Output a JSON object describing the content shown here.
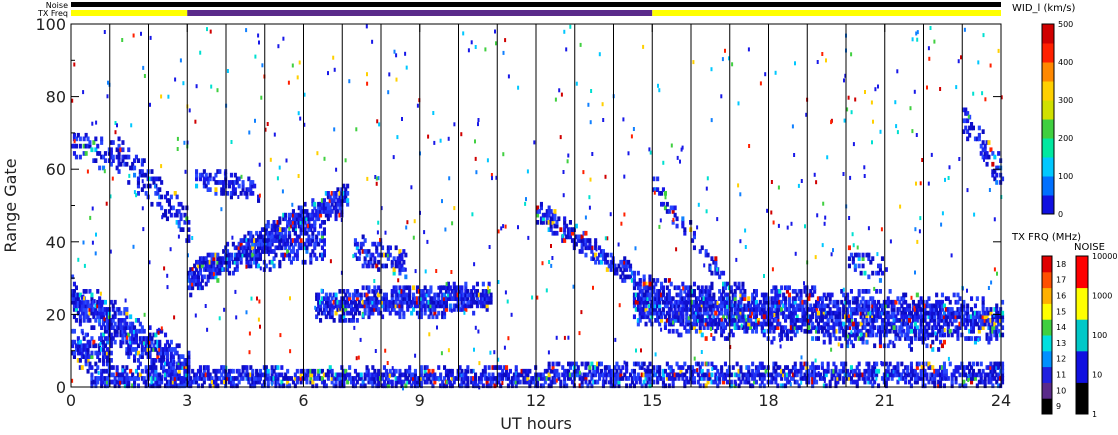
{
  "chart_data": {
    "type": "heatmap",
    "xlabel": "UT hours",
    "ylabel": "Range Gate",
    "xlim": [
      0,
      24
    ],
    "ylim": [
      0,
      100
    ],
    "x_ticks": [
      0,
      3,
      6,
      9,
      12,
      15,
      18,
      21,
      24
    ],
    "y_ticks": [
      0,
      20,
      40,
      60,
      80,
      100
    ],
    "scan_boundaries_hours": [
      1,
      2,
      3,
      4,
      5,
      6,
      7,
      8,
      9,
      10,
      11,
      12,
      13,
      14,
      15,
      16,
      17,
      18,
      19,
      20,
      21,
      22,
      23
    ],
    "top_bars": {
      "noise_label": "Noise",
      "txfreq_label": "TX Freq",
      "segments": [
        {
          "from": 0,
          "to": 3,
          "color": "#ffff00"
        },
        {
          "from": 3,
          "to": 15,
          "color": "#5a2a8a"
        },
        {
          "from": 15,
          "to": 24,
          "color": "#ffff00"
        }
      ]
    },
    "echo_bands": [
      {
        "t0": 0.0,
        "g0": 24,
        "t1": 3.0,
        "g1": 4,
        "halfwidth": 6,
        "density": 0.8
      },
      {
        "t0": 0.0,
        "g0": 10,
        "t1": 1.0,
        "g1": 8,
        "halfwidth": 5,
        "density": 0.7
      },
      {
        "t0": 0.0,
        "g0": 68,
        "t1": 1.0,
        "g1": 62,
        "halfwidth": 4,
        "density": 0.35
      },
      {
        "t0": 1.0,
        "g0": 66,
        "t1": 3.0,
        "g1": 44,
        "halfwidth": 5,
        "density": 0.45
      },
      {
        "t0": 3.0,
        "g0": 29,
        "t1": 7.1,
        "g1": 52,
        "halfwidth": 4,
        "density": 0.9
      },
      {
        "t0": 4.5,
        "g0": 36,
        "t1": 6.5,
        "g1": 40,
        "halfwidth": 5,
        "density": 0.6
      },
      {
        "t0": 3.2,
        "g0": 57,
        "t1": 4.8,
        "g1": 54,
        "halfwidth": 3,
        "density": 0.45
      },
      {
        "t0": 6.3,
        "g0": 22,
        "t1": 10.8,
        "g1": 24,
        "halfwidth": 4,
        "density": 0.9
      },
      {
        "t0": 7.3,
        "g0": 38,
        "t1": 8.6,
        "g1": 33,
        "halfwidth": 4,
        "density": 0.55
      },
      {
        "t0": 0.5,
        "g0": 2,
        "t1": 24.0,
        "g1": 3,
        "halfwidth": 3,
        "density": 0.75
      },
      {
        "t0": 12.0,
        "g0": 48,
        "t1": 15.0,
        "g1": 26,
        "halfwidth": 3,
        "density": 0.6
      },
      {
        "t0": 14.5,
        "g0": 23,
        "t1": 24.0,
        "g1": 18,
        "halfwidth": 6,
        "density": 0.85
      },
      {
        "t0": 15.0,
        "g0": 55,
        "t1": 16.8,
        "g1": 30,
        "halfwidth": 3,
        "density": 0.35
      },
      {
        "t0": 15.3,
        "g0": 18,
        "t1": 22.5,
        "g1": 14,
        "halfwidth": 4,
        "density": 0.4
      },
      {
        "t0": 23.0,
        "g0": 74,
        "t1": 24.0,
        "g1": 58,
        "halfwidth": 4,
        "density": 0.45
      },
      {
        "t0": 20.0,
        "g0": 35,
        "t1": 21.0,
        "g1": 32,
        "halfwidth": 3,
        "density": 0.4
      }
    ],
    "colorbars": [
      {
        "title": "WID_l (km/s)",
        "ticks": [
          "0",
          "100",
          "200",
          "300",
          "400",
          "500"
        ],
        "colors": [
          "#1010e0",
          "#0070ff",
          "#00c8ff",
          "#00e8a0",
          "#40d040",
          "#d0e000",
          "#ffd000",
          "#ff8800",
          "#ff2000",
          "#d00000"
        ]
      },
      {
        "title": "TX FRQ (MHz)",
        "ticks": [
          "9",
          "10",
          "11",
          "12",
          "13",
          "14",
          "15",
          "16",
          "17",
          "18"
        ],
        "colors": [
          "#000000",
          "#5a2a8a",
          "#2020e0",
          "#0090ff",
          "#00e0e0",
          "#40d040",
          "#ffff00",
          "#ffb000",
          "#ff5000",
          "#e00000"
        ]
      },
      {
        "title": "NOISE",
        "ticks": [
          "1",
          "10",
          "100",
          "1000",
          "10000"
        ],
        "colors": [
          "#000000",
          "#1010e0",
          "#00c8c8",
          "#ffff00",
          "#ff0000"
        ]
      }
    ]
  }
}
